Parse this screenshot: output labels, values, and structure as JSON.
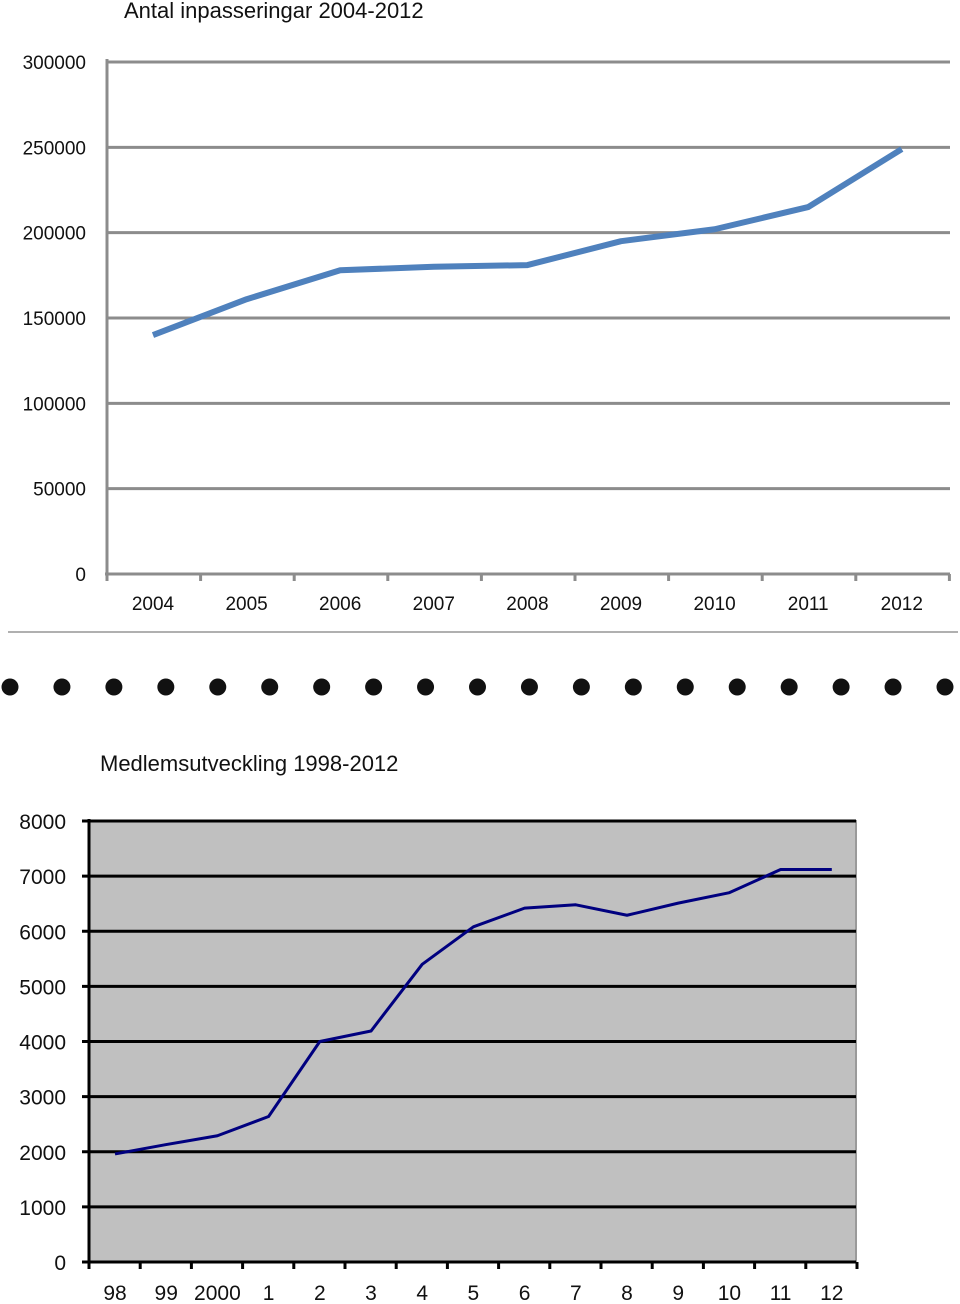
{
  "chart_data": [
    {
      "type": "line",
      "title": "Antal inpasseringar 2004-2012",
      "xlabel": "",
      "ylabel": "",
      "categories": [
        "2004",
        "2005",
        "2006",
        "2007",
        "2008",
        "2009",
        "2010",
        "2011",
        "2012"
      ],
      "series": [
        {
          "values": [
            140000,
            161000,
            178000,
            180000,
            181000,
            195000,
            202000,
            215000,
            249000
          ]
        }
      ],
      "ylim": [
        0,
        300000
      ],
      "yticks": [
        "0",
        "50000",
        "100000",
        "150000",
        "200000",
        "250000",
        "300000"
      ],
      "grid": true,
      "legend": "none",
      "colors": {
        "line": "#4f81bd",
        "grid": "#8c8c8c",
        "axis": "#8c8c8c"
      }
    },
    {
      "type": "line",
      "title": "Medlemsutveckling 1998-2012",
      "xlabel": "",
      "ylabel": "",
      "categories": [
        "98",
        "99",
        "2000",
        "1",
        "2",
        "3",
        "4",
        "5",
        "6",
        "7",
        "8",
        "9",
        "10",
        "11",
        "12"
      ],
      "series": [
        {
          "values": [
            1960,
            2130,
            2290,
            2640,
            4000,
            4190,
            5400,
            6080,
            6420,
            6480,
            6290,
            6510,
            6700,
            7120,
            7120
          ]
        }
      ],
      "ylim": [
        0,
        8000
      ],
      "yticks": [
        "0",
        "1000",
        "2000",
        "3000",
        "4000",
        "5000",
        "6000",
        "7000",
        "8000"
      ],
      "grid": true,
      "legend": "none",
      "colors": {
        "line": "#00007f",
        "plot_background": "#c0c0c0",
        "grid": "#000000",
        "axis": "#000000"
      }
    }
  ],
  "separator": {
    "dot_count": 19,
    "dot_color": "#111111",
    "rule_color": "#b0b0b0"
  }
}
